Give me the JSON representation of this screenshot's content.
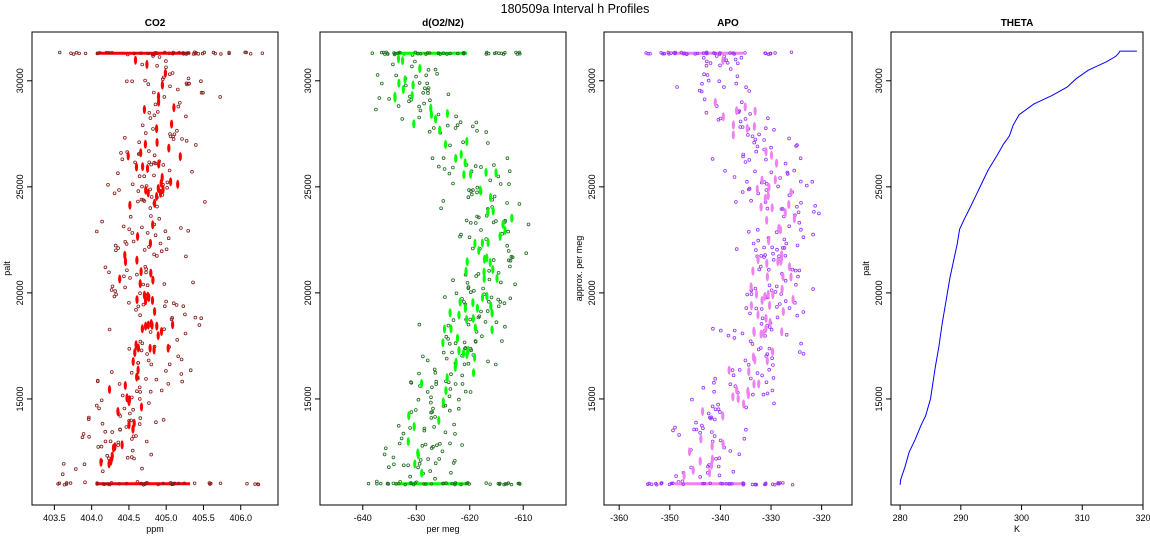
{
  "page_title": "180509a   Interval h Profiles",
  "chart_data": [
    {
      "type": "scatter",
      "title": "CO2",
      "xlabel": "ppm",
      "ylabel": "palt",
      "xlim": [
        403.2,
        406.5
      ],
      "ylim": [
        10000,
        32300
      ],
      "xticks": [
        403.5,
        404.0,
        404.5,
        405.0,
        405.5,
        406.0
      ],
      "xtick_labels": [
        "403.5",
        "404.0",
        "404.5",
        "405.0",
        "405.5",
        "406.0"
      ],
      "yticks": [
        15000,
        20000,
        25000,
        30000
      ],
      "ytick_labels": [
        "15000",
        "20000",
        "25000",
        "30000"
      ],
      "color": "#ff0000",
      "outline_color": "#8b1a1a",
      "profile": {
        "y": [
          11000,
          13000,
          15000,
          17000,
          19000,
          21000,
          23000,
          25000,
          27000,
          29000,
          30500,
          31300
        ],
        "x": [
          404.2,
          404.3,
          404.55,
          404.8,
          404.85,
          404.7,
          404.75,
          404.8,
          404.9,
          405.05,
          405.0,
          404.9
        ]
      },
      "spread": 0.45,
      "band_levels": [
        11000,
        31300
      ],
      "band_x_range": [
        403.5,
        406.3
      ]
    },
    {
      "type": "scatter",
      "title": "d(O2/N2)",
      "xlabel": "per meg",
      "ylabel": "",
      "xlim": [
        -648,
        -602
      ],
      "ylim": [
        10000,
        32300
      ],
      "xticks": [
        -640,
        -630,
        -620,
        -610
      ],
      "xtick_labels": [
        "-640",
        "-630",
        "-620",
        "-610"
      ],
      "yticks": [
        15000,
        20000,
        25000,
        30000
      ],
      "ytick_labels": [
        "15000",
        "20000",
        "25000",
        "30000"
      ],
      "color": "#00ff00",
      "outline_color": "#1e6b1e",
      "profile": {
        "y": [
          11000,
          13000,
          15000,
          17000,
          19000,
          21000,
          23000,
          25000,
          27000,
          29000,
          30500,
          31300
        ],
        "x": [
          -630,
          -630,
          -626,
          -622,
          -620,
          -617,
          -616,
          -618,
          -622,
          -630,
          -632,
          -630
        ]
      },
      "spread": 6,
      "band_levels": [
        11000,
        31300
      ],
      "band_x_range": [
        -640,
        -610
      ]
    },
    {
      "type": "scatter",
      "title": "APO",
      "xlabel": "",
      "ylabel": "approx. per meg",
      "xlim": [
        -363,
        -314
      ],
      "ylim": [
        10000,
        32300
      ],
      "xticks": [
        -360,
        -350,
        -340,
        -330,
        -320
      ],
      "xtick_labels": [
        "-360",
        "-350",
        "-340",
        "-330",
        "-320"
      ],
      "yticks": [
        15000,
        20000,
        25000,
        30000
      ],
      "ytick_labels": [
        "15000",
        "20000",
        "25000",
        "30000"
      ],
      "color": "#ee82ee",
      "outline_color": "#9b30ff",
      "profile": {
        "y": [
          11000,
          13000,
          15000,
          17000,
          19000,
          21000,
          23000,
          25000,
          27000,
          29000,
          30500,
          31300
        ],
        "x": [
          -343,
          -343,
          -338,
          -333,
          -331,
          -329,
          -328,
          -330,
          -333,
          -338,
          -340,
          -339
        ]
      },
      "spread": 6,
      "band_levels": [
        11000,
        31300
      ],
      "band_x_range": [
        -355,
        -325
      ]
    },
    {
      "type": "line",
      "title": "THETA",
      "xlabel": "K",
      "ylabel": "palt",
      "xlim": [
        278.5,
        320
      ],
      "ylim": [
        10000,
        32300
      ],
      "xticks": [
        280,
        290,
        300,
        310,
        320
      ],
      "xtick_labels": [
        "280",
        "290",
        "300",
        "310",
        "320"
      ],
      "yticks": [
        15000,
        20000,
        25000,
        30000
      ],
      "ytick_labels": [
        "15000",
        "20000",
        "25000",
        "30000"
      ],
      "color": "#0000ff",
      "x": [
        280.0,
        280.1,
        280.8,
        281.5,
        282.5,
        283.5,
        284.2,
        285.0,
        285.8,
        286.4,
        286.9,
        287.6,
        288.2,
        288.8,
        289.4,
        289.8,
        290.6,
        291.5,
        292.5,
        293.5,
        294.5,
        296.0,
        297.0,
        298.0,
        298.6,
        299.6,
        302.0,
        305.0,
        307.5,
        309.0,
        311.0,
        314.0,
        315.5,
        316.0,
        316.2,
        319.0
      ],
      "y": [
        10950,
        11200,
        11800,
        12500,
        13100,
        13800,
        14200,
        15000,
        16500,
        17500,
        18500,
        19700,
        20700,
        21500,
        22300,
        23000,
        23500,
        24000,
        24600,
        25200,
        25800,
        26500,
        27000,
        27400,
        27900,
        28400,
        28900,
        29300,
        29700,
        30100,
        30500,
        30900,
        31150,
        31300,
        31400,
        31400
      ]
    }
  ]
}
